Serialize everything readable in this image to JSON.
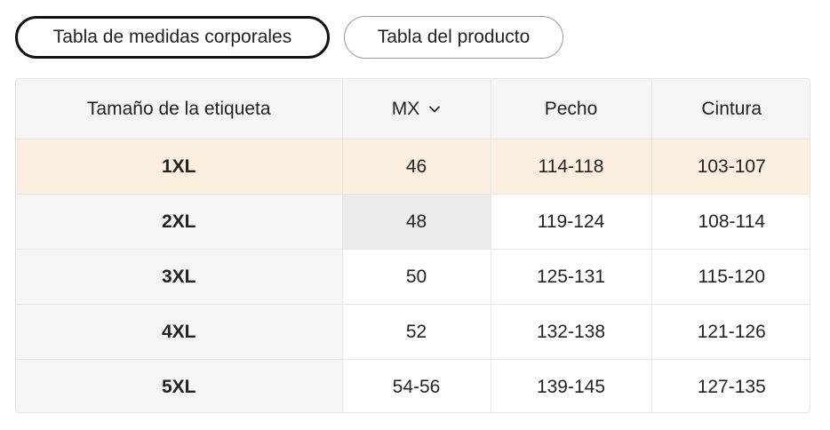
{
  "tabs": [
    {
      "label": "Tabla de medidas corporales",
      "active": true
    },
    {
      "label": "Tabla del producto",
      "active": false
    }
  ],
  "table": {
    "headers": {
      "size": "Tamaño de la etiqueta",
      "mx": "MX",
      "chest": "Pecho",
      "waist": "Cintura"
    },
    "rows": [
      {
        "size": "1XL",
        "mx": "46",
        "chest": "114-118",
        "waist": "103-107"
      },
      {
        "size": "2XL",
        "mx": "48",
        "chest": "119-124",
        "waist": "108-114"
      },
      {
        "size": "3XL",
        "mx": "50",
        "chest": "125-131",
        "waist": "115-120"
      },
      {
        "size": "4XL",
        "mx": "52",
        "chest": "132-138",
        "waist": "121-126"
      },
      {
        "size": "5XL",
        "mx": "54-56",
        "chest": "139-145",
        "waist": "127-135"
      }
    ]
  },
  "colors": {
    "highlight_row": "#fcefdf",
    "header_bg": "#f5f5f5",
    "size_col_bg": "#f5f5f5",
    "hover_cell": "#ebebeb"
  },
  "icons": {
    "mx_dropdown": "chevron-down-icon"
  }
}
